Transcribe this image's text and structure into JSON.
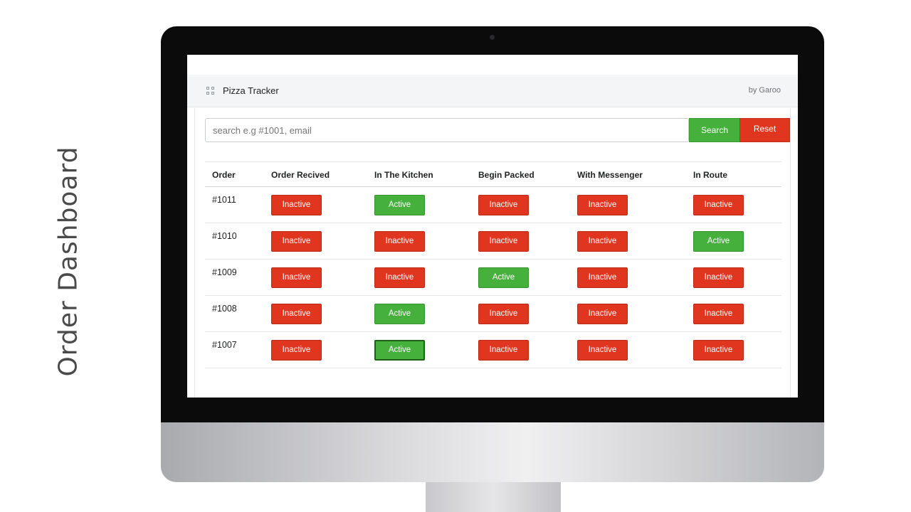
{
  "side_title": "Order Dashboard",
  "app": {
    "title": "Pizza Tracker",
    "by": "by Garoo",
    "icon": "apps-grid-icon"
  },
  "search": {
    "placeholder": "search e.g #1001, email",
    "search_label": "Search",
    "reset_label": "Reset"
  },
  "colors": {
    "active": "#45b03b",
    "inactive": "#e0351e"
  },
  "table": {
    "headers": [
      "Order",
      "Order Recived",
      "In The Kitchen",
      "Begin Packed",
      "With Messenger",
      "In Route"
    ],
    "rows": [
      {
        "order": "#1011",
        "statuses": [
          "Inactive",
          "Active",
          "Inactive",
          "Inactive",
          "Inactive"
        ]
      },
      {
        "order": "#1010",
        "statuses": [
          "Inactive",
          "Inactive",
          "Inactive",
          "Inactive",
          "Active"
        ]
      },
      {
        "order": "#1009",
        "statuses": [
          "Inactive",
          "Inactive",
          "Active",
          "Inactive",
          "Inactive"
        ]
      },
      {
        "order": "#1008",
        "statuses": [
          "Inactive",
          "Active",
          "Inactive",
          "Inactive",
          "Inactive"
        ]
      },
      {
        "order": "#1007",
        "statuses": [
          "Inactive",
          "Active",
          "Inactive",
          "Inactive",
          "Inactive"
        ]
      }
    ]
  }
}
